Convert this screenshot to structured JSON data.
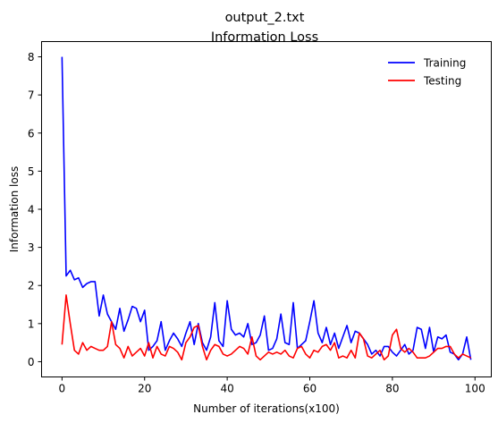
{
  "chart_data": {
    "type": "line",
    "title": "output_2.txt",
    "subtitle": "Information Loss",
    "xlabel": "Number of iterations(x100)",
    "ylabel": "Information loss",
    "xlim": [
      -4.95,
      103.95
    ],
    "ylim": [
      -0.4,
      8.4
    ],
    "xticks": [
      0,
      20,
      40,
      60,
      80,
      100
    ],
    "yticks": [
      0,
      1,
      2,
      3,
      4,
      5,
      6,
      7,
      8
    ],
    "grid": false,
    "legend_position": "top-right",
    "series": [
      {
        "name": "Training",
        "color": "#0000ff",
        "x": [
          0,
          1,
          2,
          3,
          4,
          5,
          6,
          7,
          8,
          9,
          10,
          11,
          12,
          13,
          14,
          15,
          16,
          17,
          18,
          19,
          20,
          21,
          22,
          23,
          24,
          25,
          26,
          27,
          28,
          29,
          30,
          31,
          32,
          33,
          34,
          35,
          36,
          37,
          38,
          39,
          40,
          41,
          42,
          43,
          44,
          45,
          46,
          47,
          48,
          49,
          50,
          51,
          52,
          53,
          54,
          55,
          56,
          57,
          58,
          59,
          60,
          61,
          62,
          63,
          64,
          65,
          66,
          67,
          68,
          69,
          70,
          71,
          72,
          73,
          74,
          75,
          76,
          77,
          78,
          79,
          80,
          81,
          82,
          83,
          84,
          85,
          86,
          87,
          88,
          89,
          90,
          91,
          92,
          93,
          94,
          95,
          96,
          97,
          98,
          99
        ],
        "values": [
          8.0,
          2.25,
          2.4,
          2.15,
          2.2,
          1.95,
          2.05,
          2.1,
          2.1,
          1.2,
          1.75,
          1.25,
          1.05,
          0.85,
          1.4,
          0.8,
          1.1,
          1.45,
          1.4,
          1.05,
          1.35,
          0.3,
          0.4,
          0.55,
          1.05,
          0.3,
          0.55,
          0.75,
          0.6,
          0.4,
          0.75,
          1.05,
          0.45,
          1.0,
          0.5,
          0.3,
          0.65,
          1.55,
          0.55,
          0.4,
          1.6,
          0.85,
          0.7,
          0.75,
          0.65,
          1.0,
          0.45,
          0.5,
          0.7,
          1.2,
          0.3,
          0.35,
          0.6,
          1.25,
          0.5,
          0.45,
          1.55,
          0.35,
          0.45,
          0.55,
          1.05,
          1.6,
          0.75,
          0.5,
          0.9,
          0.45,
          0.75,
          0.35,
          0.65,
          0.95,
          0.5,
          0.8,
          0.75,
          0.6,
          0.45,
          0.2,
          0.3,
          0.15,
          0.4,
          0.4,
          0.25,
          0.15,
          0.3,
          0.45,
          0.2,
          0.3,
          0.9,
          0.85,
          0.35,
          0.9,
          0.25,
          0.65,
          0.6,
          0.7,
          0.25,
          0.2,
          0.05,
          0.2,
          0.65,
          0.05
        ]
      },
      {
        "name": "Testing",
        "color": "#ff0000",
        "x": [
          0,
          1,
          2,
          3,
          4,
          5,
          6,
          7,
          8,
          9,
          10,
          11,
          12,
          13,
          14,
          15,
          16,
          17,
          18,
          19,
          20,
          21,
          22,
          23,
          24,
          25,
          26,
          27,
          28,
          29,
          30,
          31,
          32,
          33,
          34,
          35,
          36,
          37,
          38,
          39,
          40,
          41,
          42,
          43,
          44,
          45,
          46,
          47,
          48,
          49,
          50,
          51,
          52,
          53,
          54,
          55,
          56,
          57,
          58,
          59,
          60,
          61,
          62,
          63,
          64,
          65,
          66,
          67,
          68,
          69,
          70,
          71,
          72,
          73,
          74,
          75,
          76,
          77,
          78,
          79,
          80,
          81,
          82,
          83,
          84,
          85,
          86,
          87,
          88,
          89,
          90,
          91,
          92,
          93,
          94,
          95,
          96,
          97,
          98,
          99
        ],
        "values": [
          0.45,
          1.75,
          1.0,
          0.3,
          0.2,
          0.5,
          0.3,
          0.4,
          0.35,
          0.3,
          0.3,
          0.4,
          1.05,
          0.45,
          0.35,
          0.1,
          0.4,
          0.15,
          0.25,
          0.35,
          0.15,
          0.5,
          0.1,
          0.4,
          0.2,
          0.15,
          0.4,
          0.35,
          0.25,
          0.05,
          0.5,
          0.65,
          0.9,
          0.95,
          0.4,
          0.05,
          0.3,
          0.45,
          0.4,
          0.2,
          0.15,
          0.2,
          0.3,
          0.4,
          0.35,
          0.2,
          0.65,
          0.15,
          0.05,
          0.15,
          0.25,
          0.2,
          0.25,
          0.2,
          0.3,
          0.15,
          0.1,
          0.35,
          0.4,
          0.2,
          0.1,
          0.3,
          0.25,
          0.4,
          0.45,
          0.3,
          0.5,
          0.1,
          0.15,
          0.1,
          0.3,
          0.1,
          0.75,
          0.6,
          0.15,
          0.1,
          0.2,
          0.3,
          0.05,
          0.15,
          0.7,
          0.85,
          0.35,
          0.25,
          0.35,
          0.25,
          0.1,
          0.1,
          0.1,
          0.15,
          0.25,
          0.35,
          0.35,
          0.4,
          0.4,
          0.2,
          0.1,
          0.2,
          0.15,
          0.1
        ]
      }
    ]
  }
}
